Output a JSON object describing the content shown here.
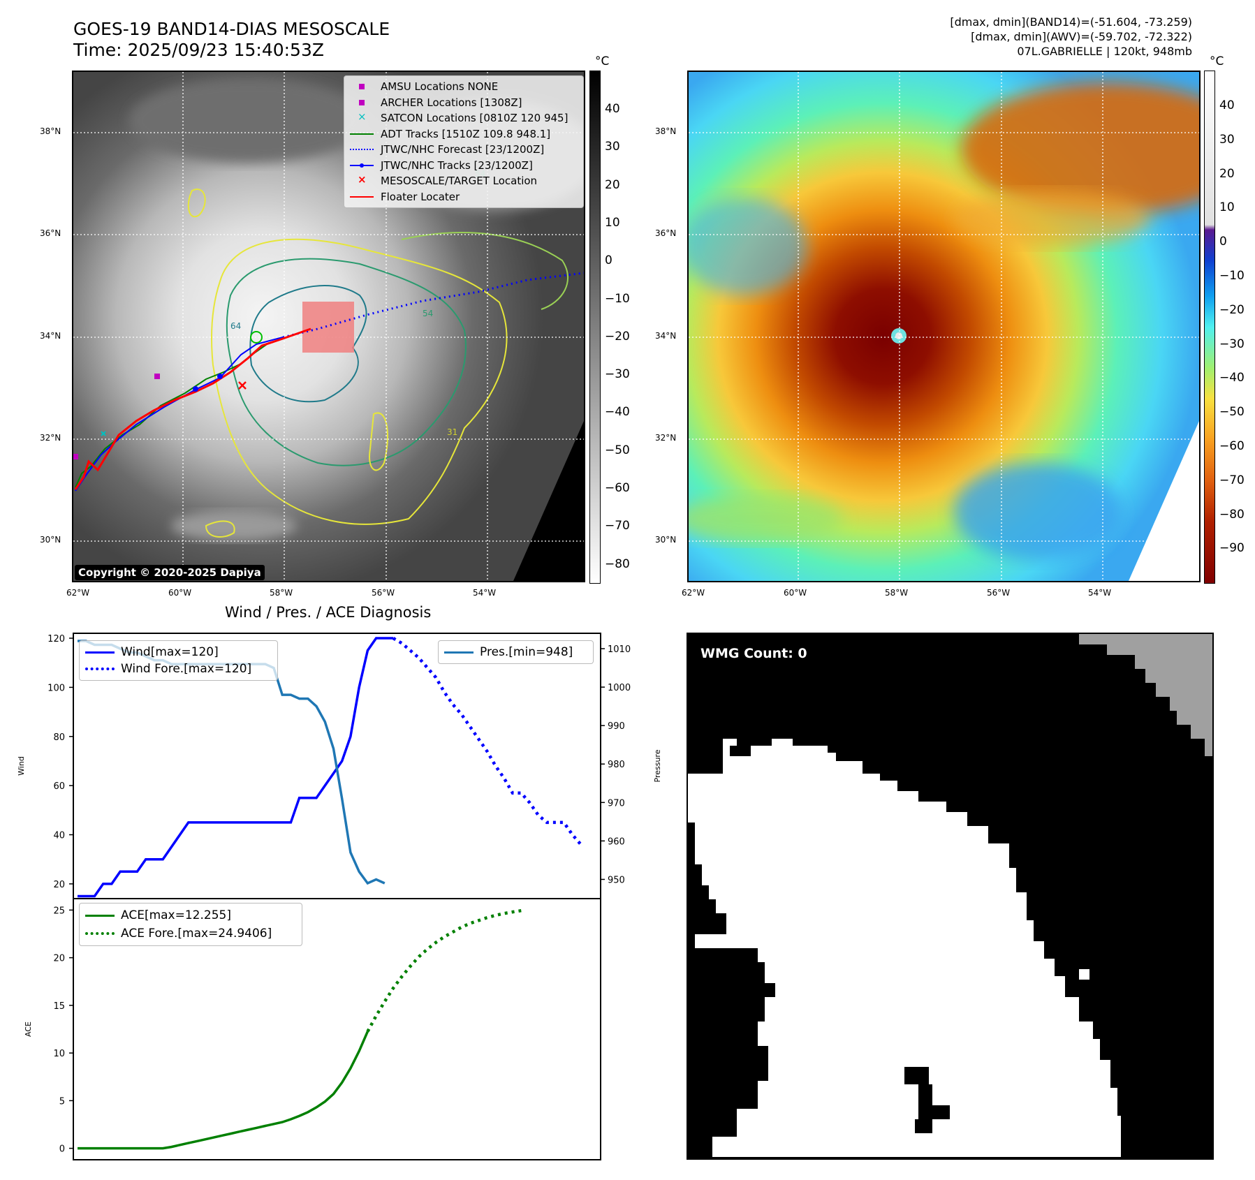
{
  "header": {
    "title_line1": "GOES-19 BAND14-DIAS MESOSCALE",
    "title_line2": "Time: 2025/09/23 15:40:53Z",
    "right_line1": "[dmax, dmin](BAND14)=(-51.604, -73.259)",
    "right_line2": "[dmax, dmin](AWV)=(-59.702, -72.322)",
    "right_line3": "07L.GABRIELLE | 120kt, 948mb"
  },
  "maps": {
    "lon_ticks": [
      "62°W",
      "60°W",
      "58°W",
      "56°W",
      "54°W"
    ],
    "lat_ticks": [
      "38°N",
      "36°N",
      "34°N",
      "32°N",
      "30°N"
    ],
    "copyright": "Copyright © 2020-2025 Dapiya",
    "unit": "°C",
    "cb1_ticks": [
      "40",
      "30",
      "20",
      "10",
      "0",
      "−10",
      "−20",
      "−30",
      "−40",
      "−50",
      "−60",
      "−70",
      "−80"
    ],
    "cb2_ticks": [
      "40",
      "30",
      "20",
      "10",
      "0",
      "−10",
      "−20",
      "−30",
      "−40",
      "−50",
      "−60",
      "−70",
      "−80",
      "−90"
    ],
    "contour_labels": [
      "54",
      "64",
      "54",
      "31"
    ],
    "colors": {
      "eye_center": "#00c000",
      "floater_box": "#f08080",
      "adt": "#008000",
      "jtwc_forecast": "#0000ff",
      "jtwc_track": "#0000ff",
      "floater": "#ff0000",
      "amsu": "#c000c0",
      "archer": "#c000c0",
      "satcon": "#00c0c0"
    },
    "legend": [
      {
        "label": "AMSU Locations NONE",
        "icon": "square-marker",
        "color": "#c000c0"
      },
      {
        "label": "ARCHER Locations [1308Z]",
        "icon": "square-marker",
        "color": "#c000c0"
      },
      {
        "label": "SATCON Locations [0810Z 120 945]",
        "icon": "x-marker",
        "color": "#00bfbf"
      },
      {
        "label": "ADT Tracks [1510Z 109.8 948.1]",
        "icon": "solid-line",
        "color": "#008000"
      },
      {
        "label": "JTWC/NHC Forecast [23/1200Z]",
        "icon": "dotted-line",
        "color": "#0000ff"
      },
      {
        "label": "JTWC/NHC Tracks [23/1200Z]",
        "icon": "line-dot",
        "color": "#0000ff"
      },
      {
        "label": "MESOSCALE/TARGET Location",
        "icon": "x-marker",
        "color": "#ff0000"
      },
      {
        "label": "Floater Locater",
        "icon": "solid-line",
        "color": "#ff0000"
      }
    ]
  },
  "wmg": {
    "label": "WMG Count: 0"
  },
  "chart_data": [
    {
      "type": "line",
      "title": "Wind / Pres. / ACE Diagnosis",
      "ylabel": "Wind",
      "ylabel2": "Pressure",
      "x": [
        0,
        1,
        2,
        3,
        4,
        5,
        6,
        7,
        8,
        9,
        10,
        11,
        12,
        13,
        14,
        15,
        16,
        17,
        18,
        19,
        20,
        21,
        22,
        23,
        24,
        25,
        26,
        27,
        28,
        29,
        30,
        31,
        32,
        33,
        34,
        35,
        36,
        37,
        38,
        39,
        40,
        41,
        42,
        43,
        44,
        45,
        46,
        47,
        48,
        49,
        50,
        51,
        52,
        53,
        54,
        55,
        56,
        57,
        58,
        59,
        60
      ],
      "ylim": [
        14,
        122
      ],
      "ylim2": [
        945,
        1014
      ],
      "yticks": [
        20,
        40,
        60,
        80,
        100,
        120
      ],
      "yticks2": [
        950,
        960,
        970,
        980,
        990,
        1000,
        1010
      ],
      "series": [
        {
          "name": "Wind[max=120]",
          "axis": "left",
          "style": "solid",
          "color": "#0000ff",
          "values": [
            15,
            15,
            15,
            20,
            20,
            25,
            25,
            25,
            30,
            30,
            30,
            35,
            40,
            45,
            45,
            45,
            45,
            45,
            45,
            45,
            45,
            45,
            45,
            45,
            45,
            45,
            55,
            55,
            55,
            60,
            65,
            70,
            80,
            100,
            115,
            120,
            120,
            120,
            null,
            null,
            null,
            null,
            null,
            null,
            null,
            null,
            null,
            null,
            null,
            null,
            null,
            null,
            null,
            null,
            null,
            null,
            null,
            null,
            null,
            null,
            null
          ]
        },
        {
          "name": "Wind Fore.[max=120]",
          "axis": "left",
          "style": "dotted",
          "color": "#0000ff",
          "values": [
            null,
            null,
            null,
            null,
            null,
            null,
            null,
            null,
            null,
            null,
            null,
            null,
            null,
            null,
            null,
            null,
            null,
            null,
            null,
            null,
            null,
            null,
            null,
            null,
            null,
            null,
            null,
            null,
            null,
            null,
            null,
            null,
            null,
            null,
            null,
            null,
            null,
            120,
            118,
            115,
            112,
            108,
            104,
            98,
            93,
            89,
            84,
            79,
            74,
            68,
            63,
            57,
            57,
            53,
            48,
            45,
            45,
            45,
            40,
            36,
            null
          ]
        },
        {
          "name": "Pres.[min=948]",
          "axis": "right",
          "style": "solid",
          "color": "#1f77b4",
          "values": [
            1012,
            1012,
            1011,
            1011,
            1011,
            1010,
            1009,
            1009,
            1008,
            1007,
            1007,
            1006,
            1006,
            1006,
            1006,
            1006,
            1006,
            1006,
            1006,
            1006,
            1006,
            1006,
            1006,
            1005,
            998,
            998,
            997,
            997,
            995,
            991,
            984,
            971,
            957,
            952,
            949,
            950,
            949,
            null,
            null,
            null,
            null,
            null,
            null,
            null,
            null,
            null,
            null,
            null,
            null,
            null,
            null,
            null,
            null,
            null,
            null,
            null,
            null,
            null,
            null,
            null,
            null
          ]
        }
      ],
      "legend_left": [
        "Wind[max=120]",
        "Wind Fore.[max=120]"
      ],
      "legend_right": [
        "Pres.[min=948]"
      ]
    },
    {
      "type": "line",
      "ylabel": "ACE",
      "ylim": [
        -1.2,
        26.2
      ],
      "yticks": [
        0,
        5,
        10,
        15,
        20,
        25
      ],
      "series": [
        {
          "name": "ACE[max=12.255]",
          "style": "solid",
          "color": "#008000",
          "values": [
            0,
            0,
            0,
            0,
            0,
            0,
            0,
            0,
            0,
            0,
            0,
            0.15,
            0.35,
            0.55,
            0.75,
            0.95,
            1.15,
            1.35,
            1.55,
            1.75,
            1.95,
            2.15,
            2.35,
            2.55,
            2.75,
            3.05,
            3.4,
            3.8,
            4.3,
            4.9,
            5.7,
            6.9,
            8.4,
            10.2,
            12.255,
            null,
            null,
            null,
            null,
            null,
            null,
            null,
            null,
            null,
            null,
            null,
            null,
            null,
            null,
            null,
            null,
            null,
            null,
            null,
            null,
            null,
            null,
            null,
            null,
            null,
            null
          ]
        },
        {
          "name": "ACE Fore.[max=24.9406]",
          "style": "dotted",
          "color": "#008000",
          "values": [
            null,
            null,
            null,
            null,
            null,
            null,
            null,
            null,
            null,
            null,
            null,
            null,
            null,
            null,
            null,
            null,
            null,
            null,
            null,
            null,
            null,
            null,
            null,
            null,
            null,
            null,
            null,
            null,
            null,
            null,
            null,
            null,
            null,
            null,
            12.255,
            13.9,
            15.4,
            16.8,
            18.0,
            19.1,
            20.1,
            20.9,
            21.6,
            22.2,
            22.7,
            23.2,
            23.6,
            23.9,
            24.2,
            24.45,
            24.65,
            24.8,
            24.9406,
            null,
            null,
            null,
            null,
            null,
            null,
            null,
            null
          ]
        }
      ],
      "legend": [
        "ACE[max=12.255]",
        "ACE Fore.[max=24.9406]"
      ]
    }
  ]
}
